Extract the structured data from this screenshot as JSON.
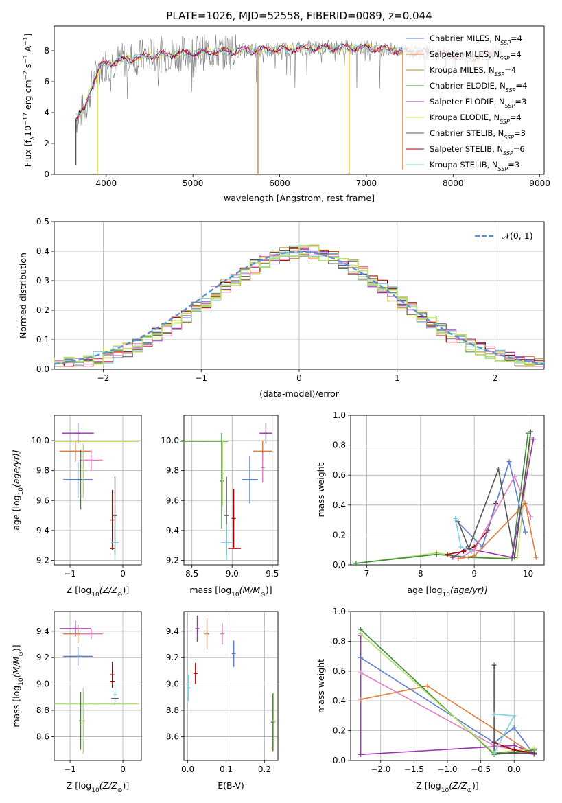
{
  "title": "PLATE=1026, MJD=52558, FIBERID=0089, z=0.044",
  "colors": {
    "chab_miles": "#5b7ed6",
    "salp_miles": "#e07b39",
    "krou_miles": "#b08e1e",
    "chab_elodie": "#3e8a3e",
    "salp_elodie": "#9b30b5",
    "krou_elodie": "#d8e046",
    "chab_stelib": "#555555",
    "salp_stelib": "#b00000",
    "krou_stelib": "#7fd4dc",
    "pink": "#e67bc0",
    "lightgreen": "#b7e06a",
    "olive": "#6aa83c",
    "gaussian": "#5b8fd6"
  },
  "legend": [
    {
      "label": "Chabrier MILES, N",
      "sub": "SSP",
      "suffix": "=4",
      "color": "#5b7ed6"
    },
    {
      "label": "Salpeter MILES, N",
      "sub": "SSP",
      "suffix": "=4",
      "color": "#e07b39"
    },
    {
      "label": "Kroupa MILES, N",
      "sub": "SSP",
      "suffix": "=4",
      "color": "#b08e1e"
    },
    {
      "label": "Chabrier ELODIE, N",
      "sub": "SSP",
      "suffix": "=4",
      "color": "#3e8a3e"
    },
    {
      "label": "Salpeter ELODIE, N",
      "sub": "SSP",
      "suffix": "=3",
      "color": "#9b30b5"
    },
    {
      "label": "Kroupa ELODIE, N",
      "sub": "SSP",
      "suffix": "=4",
      "color": "#d8e046"
    },
    {
      "label": "Chabrier STELIB, N",
      "sub": "SSP",
      "suffix": "=3",
      "color": "#555555"
    },
    {
      "label": "Salpeter STELIB, N",
      "sub": "SSP",
      "suffix": "=6",
      "color": "#b00000"
    },
    {
      "label": "Kroupa STELIB, N",
      "sub": "SSP",
      "suffix": "=3",
      "color": "#7fd4dc"
    }
  ],
  "gauss_label": "𝒩(0, 1)",
  "chart_data": [
    {
      "id": "spectrum",
      "type": "line",
      "xlabel": "wavelength [Angstrom, rest frame]",
      "ylabel": "Flux [f",
      "ylabel_rest": "10",
      "ylabel_exp": "−17",
      "ylabel_tail": " erg cm",
      "ylabel_exp2": "−2",
      "ylabel_tail2": " s",
      "ylabel_exp3": "−1",
      "ylabel_tail3": " A",
      "ylabel_exp4": "−1",
      "ylabel_tail4": "]",
      "xlim": [
        3400,
        9050
      ],
      "ylim": [
        0,
        9.6
      ],
      "xticks": [
        4000,
        5000,
        6000,
        7000,
        8000,
        9000
      ],
      "yticks": [
        0,
        2,
        4,
        6,
        8
      ],
      "spectrum_envelope": [
        [
          3650,
          3.6
        ],
        [
          3750,
          4.2
        ],
        [
          3850,
          6.0
        ],
        [
          3950,
          7.1
        ],
        [
          4100,
          7.3
        ],
        [
          4300,
          7.5
        ],
        [
          4500,
          7.7
        ],
        [
          4800,
          7.8
        ],
        [
          5100,
          7.9
        ],
        [
          5500,
          8.0
        ],
        [
          6000,
          8.1
        ],
        [
          6500,
          8.2
        ],
        [
          7000,
          8.2
        ],
        [
          7400,
          8.0
        ],
        [
          7700,
          7.9
        ],
        [
          8000,
          7.7
        ],
        [
          8200,
          7.5
        ],
        [
          8400,
          7.8
        ],
        [
          8560,
          8.0
        ]
      ],
      "gaps": [
        {
          "x": 3650,
          "y_low": 0.6,
          "color": "#555555"
        },
        {
          "x": 3900,
          "y_low": 0.0,
          "color": "#d8e046"
        },
        {
          "x": 5750,
          "y_low": 0.0,
          "color": "#e07b39"
        },
        {
          "x": 6800,
          "y_low": 0.0,
          "color": "#b08e1e"
        },
        {
          "x": 7420,
          "y_low": 0.3,
          "color": "#e07b39"
        }
      ]
    },
    {
      "id": "residuals",
      "type": "line",
      "xlabel": "(data-model)/error",
      "ylabel": "Normed distribution",
      "xlim": [
        -2.5,
        2.5
      ],
      "ylim": [
        0,
        0.5
      ],
      "xticks": [
        -2,
        -1,
        0,
        1,
        2
      ],
      "yticks": [
        0.0,
        0.1,
        0.2,
        0.3,
        0.4,
        0.5
      ],
      "series": [
        {
          "name": "N(0,1)",
          "function": "gaussian",
          "mu": 0,
          "sigma": 1
        }
      ]
    },
    {
      "id": "age_vs_Z",
      "type": "scatter",
      "xlabel": "Z [log",
      "xlabel_sub": "10",
      "xlabel_tail": "(Z/Z",
      "xlabel_sun": "⊙",
      "xlabel_end": ")]",
      "ylabel": "age  [log",
      "ylabel_sub": "10",
      "ylabel_tail": "(age/yr)]",
      "xlim": [
        -1.3,
        0.35
      ],
      "ylim": [
        9.17,
        10.17
      ],
      "xticks": [
        -1,
        0
      ],
      "yticks": [
        9.2,
        9.4,
        9.6,
        9.8,
        10.0
      ],
      "points": [
        {
          "x": -0.85,
          "y": 10.05,
          "xerr": 0.3,
          "yerr": 0.07,
          "color": "#9b30b5"
        },
        {
          "x": -0.9,
          "y": 9.93,
          "xerr": 0.3,
          "yerr": 0.07,
          "color": "#e07b39"
        },
        {
          "x": -0.6,
          "y": 9.87,
          "xerr": 0.22,
          "yerr": 0.07,
          "color": "#e67bc0"
        },
        {
          "x": -0.85,
          "y": 9.74,
          "xerr": 0.28,
          "yerr": 0.12,
          "color": "#5b7ed6"
        },
        {
          "x": -0.5,
          "y": 9.995,
          "xerr": 0.8,
          "yerr": 0.0,
          "color": "#3e8a3e"
        },
        {
          "x": -0.5,
          "y": 9.995,
          "xerr": 0.8,
          "yerr": 0.0,
          "color": "#d8e046"
        },
        {
          "x": -0.8,
          "y": 9.74,
          "xerr": 0.0,
          "yerr": 0.2,
          "color": "#3e8a3e"
        },
        {
          "x": -0.75,
          "y": 9.8,
          "xerr": 0.0,
          "yerr": 0.18,
          "color": "#b7e06a"
        },
        {
          "x": -0.2,
          "y": 9.47,
          "xerr": 0.0,
          "yerr": 0.2,
          "color": "#b00000"
        },
        {
          "x": -0.2,
          "y": 9.28,
          "xerr": 0.04,
          "yerr": 0.0,
          "color": "#b00000"
        },
        {
          "x": -0.15,
          "y": 9.5,
          "xerr": 0.0,
          "yerr": 0.26,
          "color": "#555555"
        },
        {
          "x": -0.15,
          "y": 9.32,
          "xerr": 0.07,
          "yerr": 0.12,
          "color": "#7fd4dc"
        }
      ]
    },
    {
      "id": "age_vs_mass",
      "type": "scatter",
      "xlabel": "mass [log",
      "xlabel_sub": "10",
      "xlabel_tail": "(M/M",
      "xlabel_sun": "⊙",
      "xlabel_end": ")]",
      "xlim": [
        8.4,
        9.57
      ],
      "ylim": [
        9.17,
        10.17
      ],
      "xticks": [
        8.5,
        9.0,
        9.5
      ],
      "yticks": [
        9.2,
        9.4,
        9.6,
        9.8,
        10.0
      ],
      "points": [
        {
          "x": 8.65,
          "y": 9.995,
          "xerr": 0.3,
          "yerr": 0.0,
          "color": "#6aa83c"
        },
        {
          "x": 8.87,
          "y": 9.73,
          "xerr": 0.0,
          "yerr": 0.32,
          "color": "#3e8a3e"
        },
        {
          "x": 8.88,
          "y": 9.78,
          "xerr": 0.0,
          "yerr": 0.22,
          "color": "#b7e06a"
        },
        {
          "x": 9.42,
          "y": 10.05,
          "xerr": 0.08,
          "yerr": 0.07,
          "color": "#9b30b5"
        },
        {
          "x": 9.38,
          "y": 9.93,
          "xerr": 0.12,
          "yerr": 0.07,
          "color": "#e07b39"
        },
        {
          "x": 9.38,
          "y": 9.82,
          "xerr": 0.0,
          "yerr": 0.1,
          "color": "#e67bc0"
        },
        {
          "x": 9.22,
          "y": 9.74,
          "xerr": 0.1,
          "yerr": 0.16,
          "color": "#5b7ed6"
        },
        {
          "x": 9.02,
          "y": 9.48,
          "xerr": 0.0,
          "yerr": 0.2,
          "color": "#b00000"
        },
        {
          "x": 9.03,
          "y": 9.28,
          "xerr": 0.08,
          "yerr": 0.0,
          "color": "#b00000"
        },
        {
          "x": 8.93,
          "y": 9.5,
          "xerr": 0.0,
          "yerr": 0.26,
          "color": "#555555"
        },
        {
          "x": 8.93,
          "y": 9.32,
          "xerr": 0.07,
          "yerr": 0.12,
          "color": "#7fd4dc"
        }
      ]
    },
    {
      "id": "weight_vs_age",
      "type": "line",
      "xlabel": "age  [log",
      "xlabel_sub": "10",
      "xlabel_tail": "(age/yr)]",
      "ylabel": "mass weight",
      "xlim": [
        6.7,
        10.3
      ],
      "ylim": [
        0,
        1.0
      ],
      "xticks": [
        7,
        8,
        9,
        10
      ],
      "yticks": [
        0.0,
        0.2,
        0.4,
        0.6,
        0.8,
        1.0
      ],
      "series": [
        {
          "color": "#b7e06a",
          "x": [
            6.8,
            8.3,
            8.9,
            9.8,
            10.05
          ],
          "y": [
            0.01,
            0.08,
            0.05,
            0.05,
            0.85
          ]
        },
        {
          "color": "#3e8a3e",
          "x": [
            6.8,
            8.3,
            8.9,
            9.7,
            10.0
          ],
          "y": [
            0.01,
            0.07,
            0.05,
            0.04,
            0.88
          ]
        },
        {
          "color": "#9b30b5",
          "x": [
            8.6,
            8.85,
            9.7,
            10.1
          ],
          "y": [
            0.05,
            0.11,
            0.05,
            0.84
          ]
        },
        {
          "color": "#b00000",
          "x": [
            8.5,
            8.8,
            9.0,
            9.25,
            9.4
          ],
          "y": [
            0.07,
            0.09,
            0.12,
            0.23,
            0.41
          ]
        },
        {
          "color": "#5b7ed6",
          "x": [
            8.65,
            9.15,
            9.65,
            9.95
          ],
          "y": [
            0.3,
            0.12,
            0.69,
            0.22
          ]
        },
        {
          "color": "#e67bc0",
          "x": [
            8.7,
            9.0,
            9.75,
            10.05
          ],
          "y": [
            0.04,
            0.1,
            0.59,
            0.32
          ]
        },
        {
          "color": "#e07b39",
          "x": [
            8.7,
            9.0,
            9.95,
            10.15
          ],
          "y": [
            0.04,
            0.06,
            0.41,
            0.05
          ]
        },
        {
          "color": "#555555",
          "x": [
            8.7,
            8.9,
            9.45,
            9.75,
            10.05
          ],
          "y": [
            0.29,
            0.11,
            0.64,
            0.05,
            0.89
          ]
        },
        {
          "color": "#7fd4dc",
          "x": [
            8.65,
            8.75,
            8.95
          ],
          "y": [
            0.31,
            0.12,
            0.09
          ]
        }
      ]
    },
    {
      "id": "mass_vs_Z",
      "type": "scatter",
      "xlabel": "Z [log",
      "xlabel_sub": "10",
      "xlabel_tail": "(Z/Z",
      "xlabel_sun": "⊙",
      "xlabel_end": ")]",
      "ylabel": "mass [log",
      "ylabel_sub": "10",
      "ylabel_tail": "(M/M",
      "ylabel_sun": "⊙",
      "ylabel_end": ")]",
      "xlim": [
        -1.3,
        0.35
      ],
      "ylim": [
        8.42,
        9.55
      ],
      "xticks": [
        -1,
        0
      ],
      "yticks": [
        8.6,
        8.8,
        9.0,
        9.2,
        9.4
      ],
      "points": [
        {
          "x": -0.9,
          "y": 9.42,
          "xerr": 0.3,
          "yerr": 0.06,
          "color": "#9b30b5"
        },
        {
          "x": -0.85,
          "y": 9.38,
          "xerr": 0.28,
          "yerr": 0.07,
          "color": "#e07b39"
        },
        {
          "x": -0.6,
          "y": 9.38,
          "xerr": 0.22,
          "yerr": 0.04,
          "color": "#e67bc0"
        },
        {
          "x": -0.85,
          "y": 9.21,
          "xerr": 0.28,
          "yerr": 0.07,
          "color": "#5b7ed6"
        },
        {
          "x": -0.5,
          "y": 8.85,
          "xerr": 0.8,
          "yerr": 0.0,
          "color": "#3e8a3e"
        },
        {
          "x": -0.5,
          "y": 8.85,
          "xerr": 0.8,
          "yerr": 0.0,
          "color": "#b7e06a"
        },
        {
          "x": -0.8,
          "y": 8.72,
          "xerr": 0.0,
          "yerr": 0.22,
          "color": "#3e8a3e"
        },
        {
          "x": -0.75,
          "y": 8.72,
          "xerr": 0.0,
          "yerr": 0.25,
          "color": "#b7e06a"
        },
        {
          "x": -0.2,
          "y": 9.07,
          "xerr": 0.0,
          "yerr": 0.1,
          "color": "#b00000"
        },
        {
          "x": -0.2,
          "y": 9.02,
          "xerr": 0.04,
          "yerr": 0.0,
          "color": "#b00000"
        },
        {
          "x": -0.15,
          "y": 8.92,
          "xerr": 0.0,
          "yerr": 0.08,
          "color": "#7fd4dc"
        },
        {
          "x": -0.15,
          "y": 8.89,
          "xerr": 0.07,
          "yerr": 0.0,
          "color": "#555555"
        }
      ]
    },
    {
      "id": "mass_vs_ebv",
      "type": "scatter",
      "xlabel": "E(B-V)",
      "xlim": [
        -0.01,
        0.235
      ],
      "ylim": [
        8.42,
        9.55
      ],
      "xticks": [
        0.0,
        0.1,
        0.2
      ],
      "yticks": [
        8.6,
        8.8,
        9.0,
        9.2,
        9.4
      ],
      "points": [
        {
          "x": 0.025,
          "y": 9.42,
          "yerr": 0.1,
          "color": "#9b30b5"
        },
        {
          "x": 0.05,
          "y": 9.38,
          "yerr": 0.12,
          "color": "#e07b39"
        },
        {
          "x": 0.09,
          "y": 9.38,
          "yerr": 0.08,
          "color": "#e67bc0"
        },
        {
          "x": 0.12,
          "y": 9.23,
          "yerr": 0.1,
          "color": "#5b7ed6"
        },
        {
          "x": 0.02,
          "y": 9.08,
          "yerr": 0.08,
          "color": "#b00000"
        },
        {
          "x": 0.002,
          "y": 8.97,
          "yerr": 0.1,
          "color": "#7fd4dc"
        },
        {
          "x": 0.222,
          "y": 8.71,
          "yerr": 0.22,
          "color": "#3e8a3e"
        },
        {
          "x": 0.225,
          "y": 8.72,
          "yerr": 0.22,
          "color": "#b7e06a"
        }
      ]
    },
    {
      "id": "weight_vs_Z",
      "type": "line",
      "xlabel": "Z [log",
      "xlabel_sub": "10",
      "xlabel_tail": "(Z/Z",
      "xlabel_sun": "⊙",
      "xlabel_end": ")]",
      "ylabel": "mass weight",
      "xlim": [
        -2.45,
        0.45
      ],
      "ylim": [
        0,
        1.0
      ],
      "xticks": [
        -2.0,
        -1.5,
        -1.0,
        -0.5,
        0.0
      ],
      "yticks": [
        0.0,
        0.2,
        0.4,
        0.6,
        0.8,
        1.0
      ],
      "series": [
        {
          "color": "#9b30b5",
          "x": [
            -2.3,
            -2.3,
            -2.3,
            0.0,
            0.3
          ],
          "y": [
            0.84,
            0.04,
            0.04,
            0.1,
            0.05
          ]
        },
        {
          "color": "#e07b39",
          "x": [
            -2.3,
            -1.3,
            0.3
          ],
          "y": [
            0.41,
            0.5,
            0.04
          ]
        },
        {
          "color": "#5b7ed6",
          "x": [
            -2.3,
            -0.3,
            0.0,
            0.3
          ],
          "y": [
            0.69,
            0.12,
            0.22,
            0.04
          ]
        },
        {
          "color": "#e67bc0",
          "x": [
            -2.3,
            -0.3,
            0.3
          ],
          "y": [
            0.59,
            0.1,
            0.04
          ]
        },
        {
          "color": "#3e8a3e",
          "x": [
            -2.3,
            -0.3,
            0.3
          ],
          "y": [
            0.88,
            0.04,
            0.07
          ]
        },
        {
          "color": "#b7e06a",
          "x": [
            -2.3,
            -0.3,
            0.3
          ],
          "y": [
            0.85,
            0.05,
            0.08
          ]
        },
        {
          "color": "#b00000",
          "x": [
            -0.3,
            0.0,
            0.3
          ],
          "y": [
            0.12,
            0.07,
            0.05
          ]
        },
        {
          "color": "#555555",
          "x": [
            -0.3,
            -0.3,
            0.3
          ],
          "y": [
            0.64,
            0.05,
            0.05
          ]
        },
        {
          "color": "#7fd4dc",
          "x": [
            -0.3,
            0.0,
            -0.3
          ],
          "y": [
            0.31,
            0.3,
            0.05
          ]
        }
      ]
    }
  ]
}
